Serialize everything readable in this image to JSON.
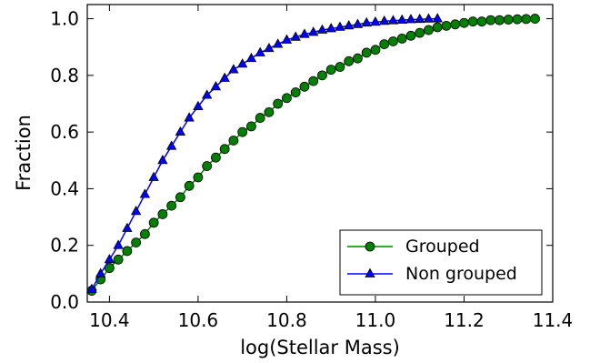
{
  "chart_data": {
    "type": "line",
    "xlabel": "log(Stellar Mass)",
    "ylabel": "Fraction",
    "xlim": [
      10.35,
      11.4
    ],
    "ylim": [
      0.0,
      1.05
    ],
    "xticks": [
      "10.4",
      "10.6",
      "10.8",
      "11.0",
      "11.2",
      "11.4"
    ],
    "yticks": [
      "0.0",
      "0.2",
      "0.4",
      "0.6",
      "0.8",
      "1.0"
    ],
    "xtick_values": [
      10.4,
      10.6,
      10.8,
      11.0,
      11.2,
      11.4
    ],
    "ytick_values": [
      0.0,
      0.2,
      0.4,
      0.6,
      0.8,
      1.0
    ],
    "grid": false,
    "legend_position": "bottom-right",
    "series": [
      {
        "name": "Grouped",
        "color": "#008000",
        "marker": "circle",
        "x": [
          10.36,
          10.38,
          10.4,
          10.42,
          10.44,
          10.46,
          10.48,
          10.5,
          10.52,
          10.54,
          10.56,
          10.58,
          10.6,
          10.62,
          10.64,
          10.66,
          10.68,
          10.7,
          10.72,
          10.74,
          10.76,
          10.78,
          10.8,
          10.82,
          10.84,
          10.86,
          10.88,
          10.9,
          10.92,
          10.94,
          10.96,
          10.98,
          11.0,
          11.02,
          11.04,
          11.06,
          11.08,
          11.1,
          11.12,
          11.14,
          11.16,
          11.18,
          11.2,
          11.22,
          11.24,
          11.26,
          11.28,
          11.3,
          11.32,
          11.34,
          11.36
        ],
        "y": [
          0.04,
          0.08,
          0.12,
          0.15,
          0.18,
          0.21,
          0.24,
          0.28,
          0.31,
          0.34,
          0.37,
          0.41,
          0.44,
          0.48,
          0.51,
          0.54,
          0.57,
          0.6,
          0.62,
          0.65,
          0.67,
          0.7,
          0.72,
          0.74,
          0.76,
          0.78,
          0.8,
          0.82,
          0.83,
          0.85,
          0.86,
          0.88,
          0.89,
          0.91,
          0.92,
          0.93,
          0.94,
          0.95,
          0.96,
          0.97,
          0.975,
          0.98,
          0.985,
          0.99,
          0.99,
          0.995,
          0.995,
          0.997,
          0.998,
          0.999,
          1.0
        ]
      },
      {
        "name": "Non grouped",
        "color": "#0000ff",
        "marker": "triangle",
        "x": [
          10.36,
          10.38,
          10.4,
          10.42,
          10.44,
          10.46,
          10.48,
          10.5,
          10.52,
          10.54,
          10.56,
          10.58,
          10.6,
          10.62,
          10.64,
          10.66,
          10.68,
          10.7,
          10.72,
          10.74,
          10.76,
          10.78,
          10.8,
          10.82,
          10.84,
          10.86,
          10.88,
          10.9,
          10.92,
          10.94,
          10.96,
          10.98,
          11.0,
          11.02,
          11.04,
          11.06,
          11.08,
          11.1,
          11.12,
          11.14
        ],
        "y": [
          0.045,
          0.1,
          0.15,
          0.2,
          0.26,
          0.32,
          0.38,
          0.44,
          0.5,
          0.55,
          0.6,
          0.65,
          0.69,
          0.73,
          0.76,
          0.79,
          0.82,
          0.84,
          0.86,
          0.88,
          0.895,
          0.91,
          0.925,
          0.935,
          0.945,
          0.952,
          0.96,
          0.965,
          0.97,
          0.975,
          0.98,
          0.985,
          0.988,
          0.991,
          0.993,
          0.995,
          0.997,
          0.998,
          0.999,
          1.0
        ]
      }
    ]
  }
}
